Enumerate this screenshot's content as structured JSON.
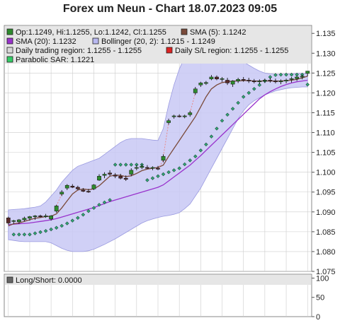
{
  "title": "Forex um Neun - Chart 18.07.2023 09:05",
  "colors": {
    "candle_up": "#2e8b2e",
    "candle_down": "#5a2a2a",
    "sma5": "#7a4a3a",
    "sma20": "#9933cc",
    "bollinger_fill": "#c8c8f5",
    "bollinger_stroke": "#9a9ae0",
    "sar_fill": "#33aa77",
    "sar_stroke": "#1e4d3d",
    "daily_sl": "#dd2222",
    "trading_region": "#c8c8c8",
    "legend_bg": "#e6e6e6",
    "grid": "#cccccc"
  },
  "legend": [
    {
      "label": "Op:1.1249, Hi:1.1255, Lo:1.1242, Cl:1.1255",
      "swatch": "#2e8b2e"
    },
    {
      "label": "SMA (5): 1.1242",
      "swatch": "#7a4a3a"
    },
    {
      "label": "SMA (20): 1.1232",
      "swatch": "#9933cc"
    },
    {
      "label": "Bollinger (20, 2): 1.1215 - 1.1249",
      "swatch": "#b8b8f0"
    },
    {
      "label": "Daily trading region: 1.1255 - 1.1255",
      "swatch": "#d8d8d8"
    },
    {
      "label": "Daily S/L region: 1.1255 - 1.1255",
      "swatch": "#dd2222"
    },
    {
      "label": "Parabolic SAR: 1.1221",
      "swatch": "#33cc66"
    }
  ],
  "chart_data": {
    "type": "candlestick",
    "ylim": [
      1.075,
      1.137
    ],
    "yticks": [
      "1.075",
      "1.080",
      "1.085",
      "1.090",
      "1.095",
      "1.100",
      "1.105",
      "1.110",
      "1.115",
      "1.120",
      "1.125",
      "1.130",
      "1.135"
    ],
    "candles": [
      {
        "o": 1.0885,
        "h": 1.0888,
        "l": 1.0868,
        "c": 1.0872
      },
      {
        "o": 1.0876,
        "h": 1.088,
        "l": 1.087,
        "c": 1.0878
      },
      {
        "o": 1.0875,
        "h": 1.0882,
        "l": 1.087,
        "c": 1.088
      },
      {
        "o": 1.088,
        "h": 1.0888,
        "l": 1.0876,
        "c": 1.0884
      },
      {
        "o": 1.0884,
        "h": 1.089,
        "l": 1.0878,
        "c": 1.0888
      },
      {
        "o": 1.0888,
        "h": 1.0892,
        "l": 1.088,
        "c": 1.089
      },
      {
        "o": 1.089,
        "h": 1.0893,
        "l": 1.0886,
        "c": 1.0888
      },
      {
        "o": 1.0888,
        "h": 1.0895,
        "l": 1.0885,
        "c": 1.089
      },
      {
        "o": 1.0882,
        "h": 1.0892,
        "l": 1.0878,
        "c": 1.089
      },
      {
        "o": 1.0902,
        "h": 1.0918,
        "l": 1.0898,
        "c": 1.0915
      },
      {
        "o": 1.0945,
        "h": 1.0955,
        "l": 1.094,
        "c": 1.095
      },
      {
        "o": 1.096,
        "h": 1.097,
        "l": 1.0955,
        "c": 1.0967
      },
      {
        "o": 1.0965,
        "h": 1.097,
        "l": 1.096,
        "c": 1.0962
      },
      {
        "o": 1.0962,
        "h": 1.0966,
        "l": 1.0955,
        "c": 1.0958
      },
      {
        "o": 1.0955,
        "h": 1.096,
        "l": 1.095,
        "c": 1.0952
      },
      {
        "o": 1.0952,
        "h": 1.0958,
        "l": 1.0948,
        "c": 1.095
      },
      {
        "o": 1.0958,
        "h": 1.097,
        "l": 1.0955,
        "c": 1.0968
      },
      {
        "o": 1.098,
        "h": 1.0995,
        "l": 1.0978,
        "c": 1.099
      },
      {
        "o": 1.0992,
        "h": 1.1,
        "l": 1.0985,
        "c": 1.0995
      },
      {
        "o": 1.0998,
        "h": 1.1005,
        "l": 1.099,
        "c": 1.0995
      },
      {
        "o": 1.0993,
        "h": 1.0998,
        "l": 1.0985,
        "c": 1.099
      },
      {
        "o": 1.099,
        "h": 1.0996,
        "l": 1.0982,
        "c": 1.0985
      },
      {
        "o": 1.0985,
        "h": 1.0992,
        "l": 1.0978,
        "c": 1.0982
      },
      {
        "o": 1.0995,
        "h": 1.101,
        "l": 1.099,
        "c": 1.1005
      },
      {
        "o": 1.101,
        "h": 1.1018,
        "l": 1.1005,
        "c": 1.1012
      },
      {
        "o": 1.1012,
        "h": 1.102,
        "l": 1.1008,
        "c": 1.1015
      },
      {
        "o": 1.1012,
        "h": 1.1018,
        "l": 1.1008,
        "c": 1.101
      },
      {
        "o": 1.101,
        "h": 1.1015,
        "l": 1.1005,
        "c": 1.1012
      },
      {
        "o": 1.101,
        "h": 1.1016,
        "l": 1.1005,
        "c": 1.1008
      },
      {
        "o": 1.103,
        "h": 1.1045,
        "l": 1.1025,
        "c": 1.104
      },
      {
        "o": 1.1125,
        "h": 1.1135,
        "l": 1.112,
        "c": 1.113
      },
      {
        "o": 1.114,
        "h": 1.1145,
        "l": 1.1135,
        "c": 1.1142
      },
      {
        "o": 1.1142,
        "h": 1.1146,
        "l": 1.1138,
        "c": 1.114
      },
      {
        "o": 1.114,
        "h": 1.1145,
        "l": 1.1136,
        "c": 1.1142
      },
      {
        "o": 1.1145,
        "h": 1.1155,
        "l": 1.114,
        "c": 1.115
      },
      {
        "o": 1.12,
        "h": 1.1215,
        "l": 1.1195,
        "c": 1.121
      },
      {
        "o": 1.122,
        "h": 1.1228,
        "l": 1.1215,
        "c": 1.1225
      },
      {
        "o": 1.1225,
        "h": 1.123,
        "l": 1.122,
        "c": 1.1226
      },
      {
        "o": 1.1235,
        "h": 1.1245,
        "l": 1.1232,
        "c": 1.124
      },
      {
        "o": 1.124,
        "h": 1.1244,
        "l": 1.1232,
        "c": 1.1235
      },
      {
        "o": 1.1234,
        "h": 1.124,
        "l": 1.1228,
        "c": 1.1236
      },
      {
        "o": 1.1232,
        "h": 1.1238,
        "l": 1.122,
        "c": 1.1225
      },
      {
        "o": 1.1222,
        "h": 1.1232,
        "l": 1.1215,
        "c": 1.123
      },
      {
        "o": 1.123,
        "h": 1.1238,
        "l": 1.1225,
        "c": 1.1234
      },
      {
        "o": 1.1234,
        "h": 1.124,
        "l": 1.1228,
        "c": 1.1232
      },
      {
        "o": 1.1232,
        "h": 1.1238,
        "l": 1.1225,
        "c": 1.123
      },
      {
        "o": 1.123,
        "h": 1.1235,
        "l": 1.1224,
        "c": 1.1228
      },
      {
        "o": 1.1228,
        "h": 1.1234,
        "l": 1.1222,
        "c": 1.123
      },
      {
        "o": 1.123,
        "h": 1.1236,
        "l": 1.1225,
        "c": 1.1232
      },
      {
        "o": 1.1232,
        "h": 1.1238,
        "l": 1.1226,
        "c": 1.123
      },
      {
        "o": 1.123,
        "h": 1.1236,
        "l": 1.1224,
        "c": 1.1228
      },
      {
        "o": 1.1228,
        "h": 1.1234,
        "l": 1.1222,
        "c": 1.123
      },
      {
        "o": 1.123,
        "h": 1.1236,
        "l": 1.1224,
        "c": 1.1232
      },
      {
        "o": 1.1234,
        "h": 1.124,
        "l": 1.1226,
        "c": 1.1236
      },
      {
        "o": 1.1236,
        "h": 1.1244,
        "l": 1.123,
        "c": 1.124
      },
      {
        "o": 1.124,
        "h": 1.1246,
        "l": 1.1234,
        "c": 1.1242
      },
      {
        "o": 1.1249,
        "h": 1.1255,
        "l": 1.1242,
        "c": 1.1255
      }
    ],
    "sma5": [
      1.0865,
      1.087,
      1.0872,
      1.0876,
      1.088,
      1.0884,
      1.0886,
      1.0888,
      1.0889,
      1.0895,
      1.091,
      1.0928,
      1.0945,
      1.0955,
      1.0958,
      1.0956,
      1.0958,
      1.0966,
      1.0978,
      1.099,
      1.0993,
      1.0992,
      1.0989,
      1.0991,
      1.0997,
      1.1004,
      1.1008,
      1.101,
      1.1012,
      1.1018,
      1.104,
      1.106,
      1.108,
      1.11,
      1.112,
      1.114,
      1.1165,
      1.119,
      1.121,
      1.122,
      1.1226,
      1.1228,
      1.123,
      1.123,
      1.1231,
      1.1231,
      1.123,
      1.123,
      1.123,
      1.123,
      1.123,
      1.123,
      1.1231,
      1.1232,
      1.1234,
      1.1238,
      1.1242
    ],
    "sma20": [
      1.0868,
      1.0869,
      1.087,
      1.0871,
      1.0872,
      1.0874,
      1.0876,
      1.0878,
      1.088,
      1.0883,
      1.0887,
      1.0891,
      1.0895,
      1.0899,
      1.0903,
      1.0907,
      1.0911,
      1.0916,
      1.0921,
      1.0926,
      1.093,
      1.0934,
      1.0938,
      1.0942,
      1.0946,
      1.095,
      1.0954,
      1.0958,
      1.0962,
      1.0968,
      1.0978,
      1.0988,
      1.0998,
      1.1008,
      1.1018,
      1.103,
      1.1042,
      1.1055,
      1.1068,
      1.1081,
      1.1094,
      1.1107,
      1.112,
      1.1133,
      1.1146,
      1.1159,
      1.1172,
      1.1185,
      1.1195,
      1.1203,
      1.121,
      1.1216,
      1.1221,
      1.1225,
      1.1228,
      1.123,
      1.1232
    ],
    "bollinger_upper": [
      1.0905,
      1.0906,
      1.0907,
      1.0908,
      1.091,
      1.0912,
      1.0915,
      1.0925,
      1.094,
      1.0955,
      1.0975,
      1.099,
      1.1005,
      1.1015,
      1.102,
      1.1025,
      1.103,
      1.1035,
      1.1045,
      1.1055,
      1.1065,
      1.1075,
      1.1082,
      1.1085,
      1.1085,
      1.1085,
      1.1083,
      1.1081,
      1.108,
      1.111,
      1.117,
      1.122,
      1.126,
      1.129,
      1.131,
      1.132,
      1.1322,
      1.132,
      1.131,
      1.13,
      1.1295,
      1.1292,
      1.129,
      1.1285,
      1.1278,
      1.127,
      1.1262,
      1.1255,
      1.125,
      1.1248,
      1.1247,
      1.1247,
      1.1248,
      1.1248,
      1.1249,
      1.1249,
      1.1249
    ],
    "bollinger_lower": [
      1.083,
      1.0828,
      1.0826,
      1.0825,
      1.0825,
      1.0825,
      1.0825,
      1.0825,
      1.0822,
      1.0815,
      1.0808,
      1.0803,
      1.08,
      1.08,
      1.08,
      1.0802,
      1.0806,
      1.0812,
      1.0818,
      1.0825,
      1.0832,
      1.084,
      1.0848,
      1.0856,
      1.0864,
      1.0872,
      1.0878,
      1.0882,
      1.0886,
      1.0889,
      1.0891,
      1.0894,
      1.0898,
      1.0908,
      1.092,
      1.094,
      1.096,
      1.0985,
      1.101,
      1.1035,
      1.106,
      1.1085,
      1.111,
      1.1135,
      1.1155,
      1.117,
      1.118,
      1.1188,
      1.1195,
      1.12,
      1.1205,
      1.1208,
      1.1211,
      1.1213,
      1.1214,
      1.1215,
      1.1215
    ],
    "sar": [
      null,
      1.0843,
      1.0843,
      1.0843,
      1.0843,
      1.0846,
      1.0849,
      1.0852,
      1.0856,
      1.086,
      1.0865,
      1.0871,
      1.0878,
      1.0885,
      1.0893,
      1.0902,
      1.091,
      1.0918,
      1.0924,
      1.093,
      1.1019,
      1.1019,
      1.1019,
      1.1019,
      1.1019,
      1.1019,
      1.098,
      1.0985,
      1.099,
      1.0995,
      1.1,
      1.1005,
      1.101,
      1.102,
      1.103,
      1.104,
      1.1055,
      1.107,
      1.109,
      1.111,
      1.113,
      1.1145,
      1.116,
      1.1175,
      1.119,
      1.12,
      1.121,
      1.122,
      1.123,
      1.124,
      1.1245,
      1.1246,
      1.1246,
      1.1246,
      1.1246,
      1.1246,
      1.1221
    ]
  },
  "lower_panel": {
    "label": "Long/Short: 0.0000",
    "ylim": [
      0,
      110
    ],
    "yticks": [
      "0",
      "50",
      "100"
    ]
  }
}
